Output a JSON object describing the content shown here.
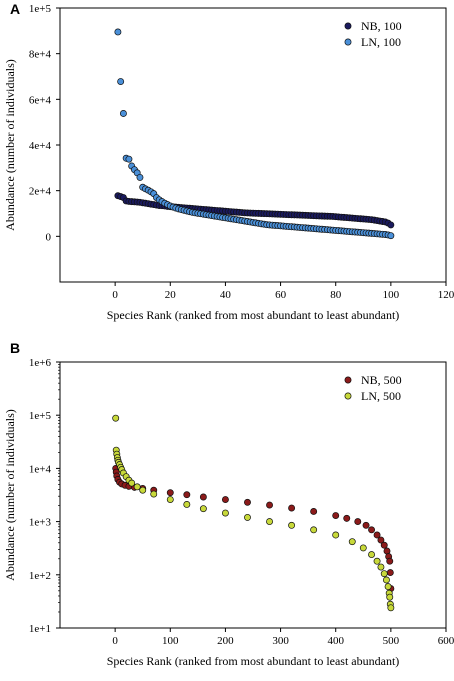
{
  "chart_data": [
    {
      "panel": "A",
      "type": "scatter",
      "xlabel": "Species Rank (ranked from most abundant to least abundant)",
      "ylabel": "Abundance (number of individuals)",
      "xlim": [
        -20,
        120
      ],
      "ylim": [
        -20000,
        100000
      ],
      "xticks": [
        0,
        20,
        40,
        60,
        80,
        100,
        120
      ],
      "yticks": [
        0,
        20000,
        40000,
        60000,
        80000,
        100000
      ],
      "ytick_labels": [
        "0",
        "2e+4",
        "4e+4",
        "6e+4",
        "8e+4",
        "1e+5"
      ],
      "yscale": "linear",
      "legend_position": "top-right",
      "series": [
        {
          "name": "NB, 100",
          "color": "#1a1a5e",
          "x": [
            1,
            2,
            3,
            4,
            5,
            6,
            7,
            8,
            9,
            10,
            11,
            12,
            13,
            14,
            15,
            16,
            17,
            18,
            19,
            20,
            21,
            22,
            23,
            24,
            25,
            26,
            27,
            28,
            29,
            30,
            31,
            32,
            33,
            34,
            35,
            36,
            37,
            38,
            39,
            40,
            41,
            42,
            43,
            44,
            45,
            46,
            47,
            48,
            49,
            50,
            51,
            52,
            53,
            54,
            55,
            56,
            57,
            58,
            59,
            60,
            61,
            62,
            63,
            64,
            65,
            66,
            67,
            68,
            69,
            70,
            71,
            72,
            73,
            74,
            75,
            76,
            77,
            78,
            79,
            80,
            81,
            82,
            83,
            84,
            85,
            86,
            87,
            88,
            89,
            90,
            91,
            92,
            93,
            94,
            95,
            96,
            97,
            98,
            99,
            100
          ],
          "y": [
            17800,
            17400,
            17000,
            15500,
            15300,
            15200,
            15100,
            15000,
            14900,
            14700,
            14500,
            14300,
            14100,
            13900,
            13700,
            13500,
            13400,
            13300,
            13100,
            13000,
            12900,
            12800,
            12700,
            12600,
            12500,
            12400,
            12300,
            12200,
            12100,
            12000,
            11900,
            11800,
            11700,
            11600,
            11500,
            11400,
            11300,
            11200,
            11100,
            11000,
            10900,
            10800,
            10700,
            10600,
            10500,
            10400,
            10300,
            10250,
            10200,
            10150,
            10100,
            10050,
            10000,
            9950,
            9900,
            9850,
            9800,
            9750,
            9700,
            9650,
            9600,
            9550,
            9500,
            9450,
            9400,
            9350,
            9300,
            9250,
            9200,
            9150,
            9100,
            9050,
            9000,
            8950,
            8900,
            8850,
            8800,
            8750,
            8700,
            8600,
            8500,
            8400,
            8300,
            8200,
            8100,
            8000,
            7900,
            7800,
            7700,
            7600,
            7500,
            7400,
            7300,
            7100,
            6900,
            6700,
            6500,
            6300,
            5800,
            5000
          ]
        },
        {
          "name": "LN, 100",
          "color": "#4a90d9",
          "x": [
            1,
            2,
            3,
            4,
            5,
            6,
            7,
            8,
            9,
            10,
            11,
            12,
            13,
            14,
            15,
            16,
            17,
            18,
            19,
            20,
            21,
            22,
            23,
            24,
            25,
            26,
            27,
            28,
            29,
            30,
            31,
            32,
            33,
            34,
            35,
            36,
            37,
            38,
            39,
            40,
            41,
            42,
            43,
            44,
            45,
            46,
            47,
            48,
            49,
            50,
            51,
            52,
            53,
            54,
            55,
            56,
            57,
            58,
            59,
            60,
            61,
            62,
            63,
            64,
            65,
            66,
            67,
            68,
            69,
            70,
            71,
            72,
            73,
            74,
            75,
            76,
            77,
            78,
            79,
            80,
            81,
            82,
            83,
            84,
            85,
            86,
            87,
            88,
            89,
            90,
            91,
            92,
            93,
            94,
            95,
            96,
            97,
            98,
            99,
            100
          ],
          "y": [
            89500,
            67800,
            53800,
            34200,
            33800,
            30800,
            29200,
            27800,
            25800,
            21500,
            20800,
            20200,
            19500,
            18700,
            17000,
            16000,
            15200,
            14500,
            13900,
            13300,
            12800,
            12400,
            12000,
            11700,
            11400,
            11100,
            10800,
            10500,
            10300,
            10100,
            9900,
            9700,
            9500,
            9300,
            9100,
            8900,
            8700,
            8500,
            8300,
            8100,
            7900,
            7700,
            7500,
            7300,
            7100,
            6900,
            6700,
            6500,
            6300,
            6100,
            5900,
            5700,
            5500,
            5300,
            5100,
            5000,
            4900,
            4800,
            4700,
            4600,
            4500,
            4400,
            4300,
            4200,
            4100,
            4000,
            3900,
            3800,
            3700,
            3600,
            3500,
            3400,
            3300,
            3200,
            3100,
            3000,
            2900,
            2800,
            2700,
            2600,
            2500,
            2400,
            2300,
            2200,
            2100,
            2000,
            1900,
            1800,
            1700,
            1600,
            1500,
            1400,
            1300,
            1200,
            1100,
            1000,
            900,
            800,
            600,
            300
          ]
        }
      ]
    },
    {
      "panel": "B",
      "type": "scatter",
      "xlabel": "Species Rank (ranked from most abundant to least abundant)",
      "ylabel": "Abundance (number of individuals)",
      "xlim": [
        -100,
        600
      ],
      "ylim": [
        10,
        1000000
      ],
      "xticks": [
        0,
        100,
        200,
        300,
        400,
        500,
        600
      ],
      "yticks": [
        10,
        100,
        1000,
        10000,
        100000,
        1000000
      ],
      "ytick_labels": [
        "1e+1",
        "1e+2",
        "1e+3",
        "1e+4",
        "1e+5",
        "1e+6"
      ],
      "yscale": "log",
      "legend_position": "top-right",
      "series": [
        {
          "name": "NB, 500",
          "color": "#8b1a1a",
          "x": [
            1,
            2,
            3,
            5,
            8,
            12,
            18,
            25,
            35,
            50,
            70,
            100,
            130,
            160,
            200,
            240,
            280,
            320,
            360,
            400,
            420,
            440,
            455,
            465,
            475,
            482,
            488,
            493,
            496,
            498,
            499,
            500
          ],
          "y": [
            10000,
            8500,
            7200,
            6200,
            5500,
            5100,
            4800,
            4600,
            4400,
            4200,
            3900,
            3500,
            3200,
            2900,
            2600,
            2300,
            2050,
            1800,
            1550,
            1300,
            1150,
            1000,
            850,
            700,
            560,
            450,
            360,
            280,
            220,
            180,
            110,
            55
          ]
        },
        {
          "name": "LN, 500",
          "color": "#c8d93a",
          "x": [
            1,
            2,
            3,
            4,
            5,
            6,
            8,
            10,
            12,
            15,
            20,
            25,
            30,
            40,
            50,
            70,
            100,
            130,
            160,
            200,
            240,
            280,
            320,
            360,
            400,
            430,
            450,
            465,
            475,
            482,
            488,
            492,
            495,
            497,
            498,
            499,
            500
          ],
          "y": [
            88000,
            22000,
            18500,
            16000,
            14200,
            13000,
            11800,
            10500,
            9500,
            8200,
            7000,
            6000,
            5300,
            4500,
            3900,
            3300,
            2600,
            2100,
            1750,
            1450,
            1200,
            1000,
            850,
            700,
            560,
            420,
            320,
            240,
            180,
            140,
            105,
            80,
            60,
            45,
            38,
            28,
            24
          ]
        }
      ]
    }
  ]
}
